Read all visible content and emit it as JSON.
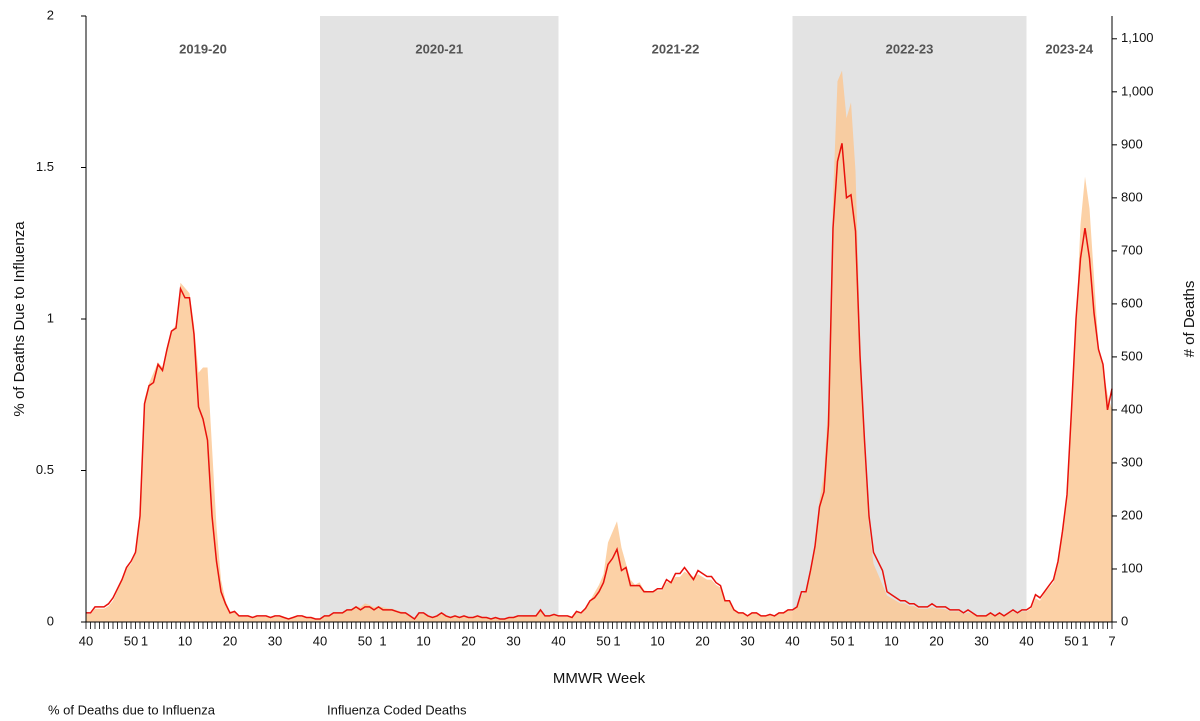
{
  "chart_data": {
    "type": "line",
    "x_label": "MMWR Week",
    "y_label": "% of Deaths Due to Influenza",
    "y2_label": "# of Deaths",
    "seasons": [
      {
        "name": "2019-20",
        "shaded": false
      },
      {
        "name": "2020-21",
        "shaded": true
      },
      {
        "name": "2021-22",
        "shaded": false
      },
      {
        "name": "2022-23",
        "shaded": true
      },
      {
        "name": "2023-24",
        "shaded": false
      }
    ],
    "categories": [
      "40",
      null,
      null,
      null,
      null,
      null,
      null,
      null,
      null,
      null,
      "50",
      null,
      null,
      "1",
      null,
      null,
      null,
      null,
      null,
      null,
      null,
      null,
      "10",
      null,
      null,
      null,
      null,
      null,
      null,
      null,
      null,
      null,
      "20",
      null,
      null,
      null,
      null,
      null,
      null,
      null,
      null,
      null,
      "30",
      null,
      null,
      null,
      null,
      null,
      null,
      null,
      null,
      null,
      "40",
      null,
      null,
      null,
      null,
      null,
      null,
      null,
      null,
      null,
      "50",
      null,
      null,
      null,
      "1",
      null,
      null,
      null,
      null,
      null,
      null,
      null,
      null,
      "10",
      null,
      null,
      null,
      null,
      null,
      null,
      null,
      null,
      null,
      "20",
      null,
      null,
      null,
      null,
      null,
      null,
      null,
      null,
      null,
      "30",
      null,
      null,
      null,
      null,
      null,
      null,
      null,
      null,
      null,
      "40",
      null,
      null,
      null,
      null,
      null,
      null,
      null,
      null,
      null,
      "50",
      null,
      null,
      "1",
      null,
      null,
      null,
      null,
      null,
      null,
      null,
      null,
      "10",
      null,
      null,
      null,
      null,
      null,
      null,
      null,
      null,
      null,
      "20",
      null,
      null,
      null,
      null,
      null,
      null,
      null,
      null,
      null,
      "30",
      null,
      null,
      null,
      null,
      null,
      null,
      null,
      null,
      null,
      "40",
      null,
      null,
      null,
      null,
      null,
      null,
      null,
      null,
      null,
      "50",
      null,
      null,
      "1",
      null,
      null,
      null,
      null,
      null,
      null,
      null,
      null,
      "10",
      null,
      null,
      null,
      null,
      null,
      null,
      null,
      null,
      null,
      "20",
      null,
      null,
      null,
      null,
      null,
      null,
      null,
      null,
      null,
      "30",
      null,
      null,
      null,
      null,
      null,
      null,
      null,
      null,
      null,
      "40",
      null,
      null,
      null,
      null,
      null,
      null,
      null,
      null,
      null,
      "50",
      null,
      null,
      "1",
      null,
      null,
      null,
      null,
      null,
      "7"
    ],
    "series": [
      {
        "name": "Influenza Coded Deaths",
        "type": "area",
        "axis": "y2",
        "color": "#fbc590",
        "values": [
          15,
          15,
          25,
          25,
          25,
          30,
          40,
          60,
          80,
          100,
          110,
          130,
          200,
          420,
          450,
          470,
          490,
          480,
          520,
          550,
          560,
          640,
          630,
          620,
          560,
          470,
          480,
          480,
          330,
          180,
          80,
          40,
          20,
          20,
          12,
          12,
          12,
          9,
          10,
          10,
          10,
          8,
          10,
          10,
          8,
          6,
          8,
          10,
          10,
          8,
          8,
          6,
          5,
          10,
          12,
          15,
          18,
          18,
          22,
          25,
          30,
          28,
          35,
          32,
          28,
          30,
          28,
          26,
          25,
          22,
          20,
          18,
          12,
          6,
          15,
          15,
          12,
          8,
          10,
          15,
          12,
          8,
          10,
          8,
          10,
          8,
          8,
          10,
          8,
          8,
          6,
          8,
          6,
          6,
          8,
          8,
          10,
          10,
          12,
          12,
          14,
          25,
          12,
          12,
          14,
          10,
          10,
          10,
          8,
          20,
          15,
          25,
          40,
          55,
          70,
          90,
          150,
          170,
          190,
          140,
          110,
          80,
          70,
          75,
          60,
          58,
          58,
          60,
          60,
          75,
          75,
          85,
          85,
          95,
          90,
          85,
          90,
          85,
          80,
          80,
          70,
          65,
          40,
          38,
          25,
          18,
          18,
          12,
          16,
          16,
          12,
          12,
          14,
          12,
          16,
          16,
          22,
          20,
          30,
          50,
          60,
          100,
          150,
          230,
          280,
          420,
          800,
          1020,
          1040,
          950,
          980,
          850,
          550,
          320,
          180,
          110,
          90,
          70,
          50,
          45,
          40,
          35,
          35,
          30,
          30,
          25,
          25,
          25,
          28,
          25,
          25,
          24,
          20,
          20,
          20,
          15,
          18,
          15,
          12,
          12,
          12,
          15,
          12,
          15,
          12,
          15,
          20,
          15,
          20,
          20,
          25,
          45,
          40,
          55,
          65,
          75,
          110,
          170,
          240,
          400,
          560,
          750,
          840,
          780,
          650,
          520,
          480,
          430,
          400
        ]
      },
      {
        "name": "% of Deaths due to Influenza",
        "type": "line",
        "color": "#e8120c",
        "values": [
          0.03,
          0.03,
          0.05,
          0.05,
          0.05,
          0.06,
          0.08,
          0.11,
          0.14,
          0.18,
          0.2,
          0.23,
          0.35,
          0.72,
          0.78,
          0.79,
          0.85,
          0.83,
          0.9,
          0.96,
          0.97,
          1.1,
          1.07,
          1.07,
          0.95,
          0.71,
          0.67,
          0.6,
          0.35,
          0.2,
          0.1,
          0.06,
          0.03,
          0.035,
          0.02,
          0.02,
          0.02,
          0.015,
          0.02,
          0.02,
          0.02,
          0.015,
          0.02,
          0.02,
          0.015,
          0.01,
          0.015,
          0.02,
          0.02,
          0.015,
          0.015,
          0.01,
          0.01,
          0.02,
          0.02,
          0.03,
          0.03,
          0.03,
          0.04,
          0.04,
          0.05,
          0.04,
          0.05,
          0.05,
          0.04,
          0.05,
          0.04,
          0.04,
          0.04,
          0.035,
          0.03,
          0.03,
          0.02,
          0.01,
          0.03,
          0.03,
          0.02,
          0.015,
          0.02,
          0.03,
          0.02,
          0.015,
          0.02,
          0.015,
          0.02,
          0.015,
          0.015,
          0.02,
          0.015,
          0.015,
          0.01,
          0.015,
          0.01,
          0.01,
          0.015,
          0.015,
          0.02,
          0.02,
          0.02,
          0.02,
          0.02,
          0.04,
          0.02,
          0.02,
          0.025,
          0.02,
          0.02,
          0.02,
          0.015,
          0.035,
          0.03,
          0.045,
          0.07,
          0.08,
          0.1,
          0.13,
          0.19,
          0.21,
          0.24,
          0.17,
          0.18,
          0.12,
          0.12,
          0.12,
          0.1,
          0.1,
          0.1,
          0.11,
          0.11,
          0.14,
          0.13,
          0.16,
          0.16,
          0.18,
          0.16,
          0.14,
          0.17,
          0.16,
          0.15,
          0.15,
          0.13,
          0.12,
          0.07,
          0.07,
          0.04,
          0.03,
          0.03,
          0.02,
          0.03,
          0.03,
          0.02,
          0.02,
          0.025,
          0.02,
          0.03,
          0.03,
          0.04,
          0.04,
          0.05,
          0.1,
          0.1,
          0.17,
          0.25,
          0.38,
          0.43,
          0.65,
          1.3,
          1.52,
          1.58,
          1.4,
          1.41,
          1.29,
          0.88,
          0.6,
          0.35,
          0.23,
          0.2,
          0.17,
          0.1,
          0.09,
          0.08,
          0.07,
          0.07,
          0.06,
          0.06,
          0.05,
          0.05,
          0.05,
          0.06,
          0.05,
          0.05,
          0.05,
          0.04,
          0.04,
          0.04,
          0.03,
          0.04,
          0.03,
          0.02,
          0.02,
          0.02,
          0.03,
          0.02,
          0.03,
          0.02,
          0.03,
          0.04,
          0.03,
          0.04,
          0.04,
          0.05,
          0.09,
          0.08,
          0.1,
          0.12,
          0.14,
          0.2,
          0.3,
          0.42,
          0.7,
          1.0,
          1.2,
          1.3,
          1.2,
          1.02,
          0.9,
          0.85,
          0.7,
          0.77
        ]
      }
    ],
    "ylim": [
      0,
      2
    ],
    "yticks": [
      0,
      0.5,
      1,
      1.5,
      2
    ],
    "y2lim": [
      0,
      1143
    ],
    "y2ticks": [
      0,
      100,
      200,
      300,
      400,
      500,
      600,
      700,
      800,
      900,
      {
        "value": 1000,
        "label": "1,000"
      },
      {
        "value": 1100,
        "label": "1,100"
      }
    ],
    "shade_color": "#e3e3e3"
  }
}
